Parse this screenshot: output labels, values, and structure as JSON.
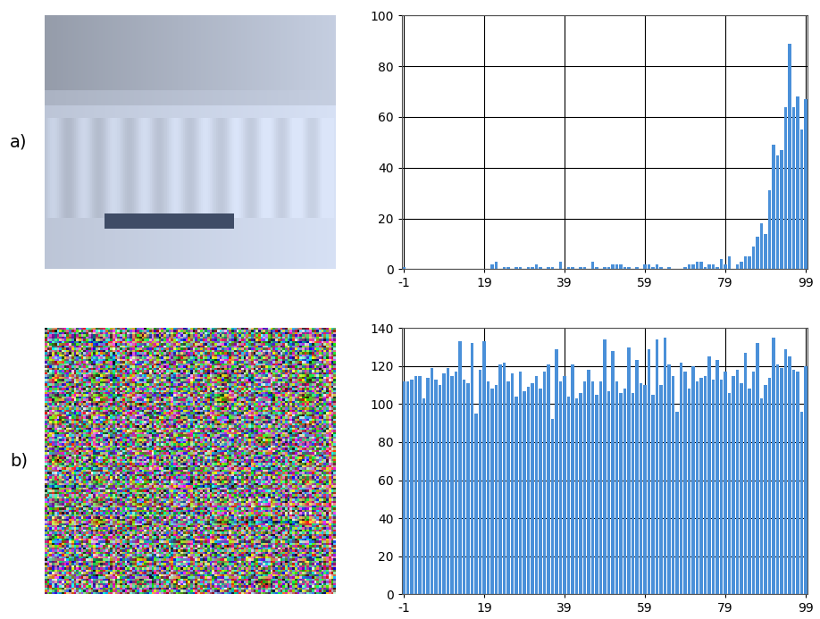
{
  "chart_data": [
    {
      "label": "a)",
      "type": "bar",
      "color": "#4a90d9",
      "grid": true,
      "x": [
        -1,
        0,
        1,
        2,
        3,
        4,
        5,
        6,
        7,
        8,
        9,
        10,
        11,
        12,
        13,
        14,
        15,
        16,
        17,
        18,
        19,
        20,
        21,
        22,
        23,
        24,
        25,
        26,
        27,
        28,
        29,
        30,
        31,
        32,
        33,
        34,
        35,
        36,
        37,
        38,
        39,
        40,
        41,
        42,
        43,
        44,
        45,
        46,
        47,
        48,
        49,
        50,
        51,
        52,
        53,
        54,
        55,
        56,
        57,
        58,
        59,
        60,
        61,
        62,
        63,
        64,
        65,
        66,
        67,
        68,
        69,
        70,
        71,
        72,
        73,
        74,
        75,
        76,
        77,
        78,
        79,
        80,
        81,
        82,
        83,
        84,
        85,
        86,
        87,
        88,
        89,
        90,
        91,
        92,
        93,
        94,
        95,
        96,
        97,
        98,
        99
      ],
      "values": [
        1,
        0,
        0,
        0,
        0,
        0,
        0,
        0,
        0,
        0,
        0,
        0,
        0,
        0,
        0,
        0,
        0,
        0,
        0,
        0,
        0,
        0,
        2,
        3,
        0,
        1,
        1,
        0,
        1,
        1,
        0,
        1,
        1,
        2,
        1,
        0,
        1,
        1,
        0,
        3,
        0,
        1,
        1,
        0,
        1,
        1,
        0,
        3,
        1,
        0,
        1,
        1,
        2,
        2,
        2,
        1,
        1,
        0,
        1,
        0,
        2,
        2,
        1,
        2,
        1,
        0,
        1,
        0,
        0,
        0,
        1,
        2,
        2,
        3,
        3,
        1,
        2,
        2,
        1,
        4,
        2,
        5,
        0,
        2,
        3,
        5,
        5,
        9,
        13,
        18,
        14,
        31,
        49,
        45,
        47,
        64,
        89,
        64,
        68,
        55,
        67
      ],
      "xlim": [
        -1.5,
        99.5
      ],
      "xticks": [
        -1,
        19,
        39,
        59,
        79,
        99
      ],
      "ylim": [
        0,
        100
      ],
      "yticks": [
        0,
        20,
        40,
        60,
        80,
        100
      ]
    },
    {
      "label": "b)",
      "type": "bar",
      "color": "#4a90d9",
      "grid": true,
      "x": [
        -1,
        0,
        1,
        2,
        3,
        4,
        5,
        6,
        7,
        8,
        9,
        10,
        11,
        12,
        13,
        14,
        15,
        16,
        17,
        18,
        19,
        20,
        21,
        22,
        23,
        24,
        25,
        26,
        27,
        28,
        29,
        30,
        31,
        32,
        33,
        34,
        35,
        36,
        37,
        38,
        39,
        40,
        41,
        42,
        43,
        44,
        45,
        46,
        47,
        48,
        49,
        50,
        51,
        52,
        53,
        54,
        55,
        56,
        57,
        58,
        59,
        60,
        61,
        62,
        63,
        64,
        65,
        66,
        67,
        68,
        69,
        70,
        71,
        72,
        73,
        74,
        75,
        76,
        77,
        78,
        79,
        80,
        81,
        82,
        83,
        84,
        85,
        86,
        87,
        88,
        89,
        90,
        91,
        92,
        93,
        94,
        95,
        96,
        97,
        98,
        99
      ],
      "values": [
        112,
        112,
        113,
        115,
        115,
        103,
        114,
        119,
        113,
        110,
        116,
        119,
        115,
        117,
        133,
        113,
        111,
        132,
        95,
        118,
        133,
        112,
        108,
        110,
        121,
        122,
        112,
        116,
        104,
        117,
        107,
        109,
        111,
        115,
        108,
        117,
        121,
        92,
        129,
        112,
        115,
        104,
        121,
        103,
        106,
        112,
        118,
        112,
        105,
        112,
        134,
        107,
        128,
        112,
        106,
        108,
        130,
        106,
        123,
        111,
        110,
        129,
        105,
        134,
        110,
        135,
        121,
        115,
        96,
        122,
        117,
        108,
        120,
        112,
        114,
        115,
        125,
        113,
        123,
        113,
        117,
        106,
        115,
        118,
        111,
        127,
        108,
        117,
        132,
        103,
        110,
        114,
        135,
        121,
        119,
        129,
        125,
        118,
        117,
        96,
        120
      ],
      "xlim": [
        -1.5,
        99.5
      ],
      "xticks": [
        -1,
        19,
        39,
        59,
        79,
        99
      ],
      "ylim": [
        0,
        140
      ],
      "yticks": [
        0,
        20,
        40,
        60,
        80,
        100,
        120,
        140
      ]
    }
  ]
}
